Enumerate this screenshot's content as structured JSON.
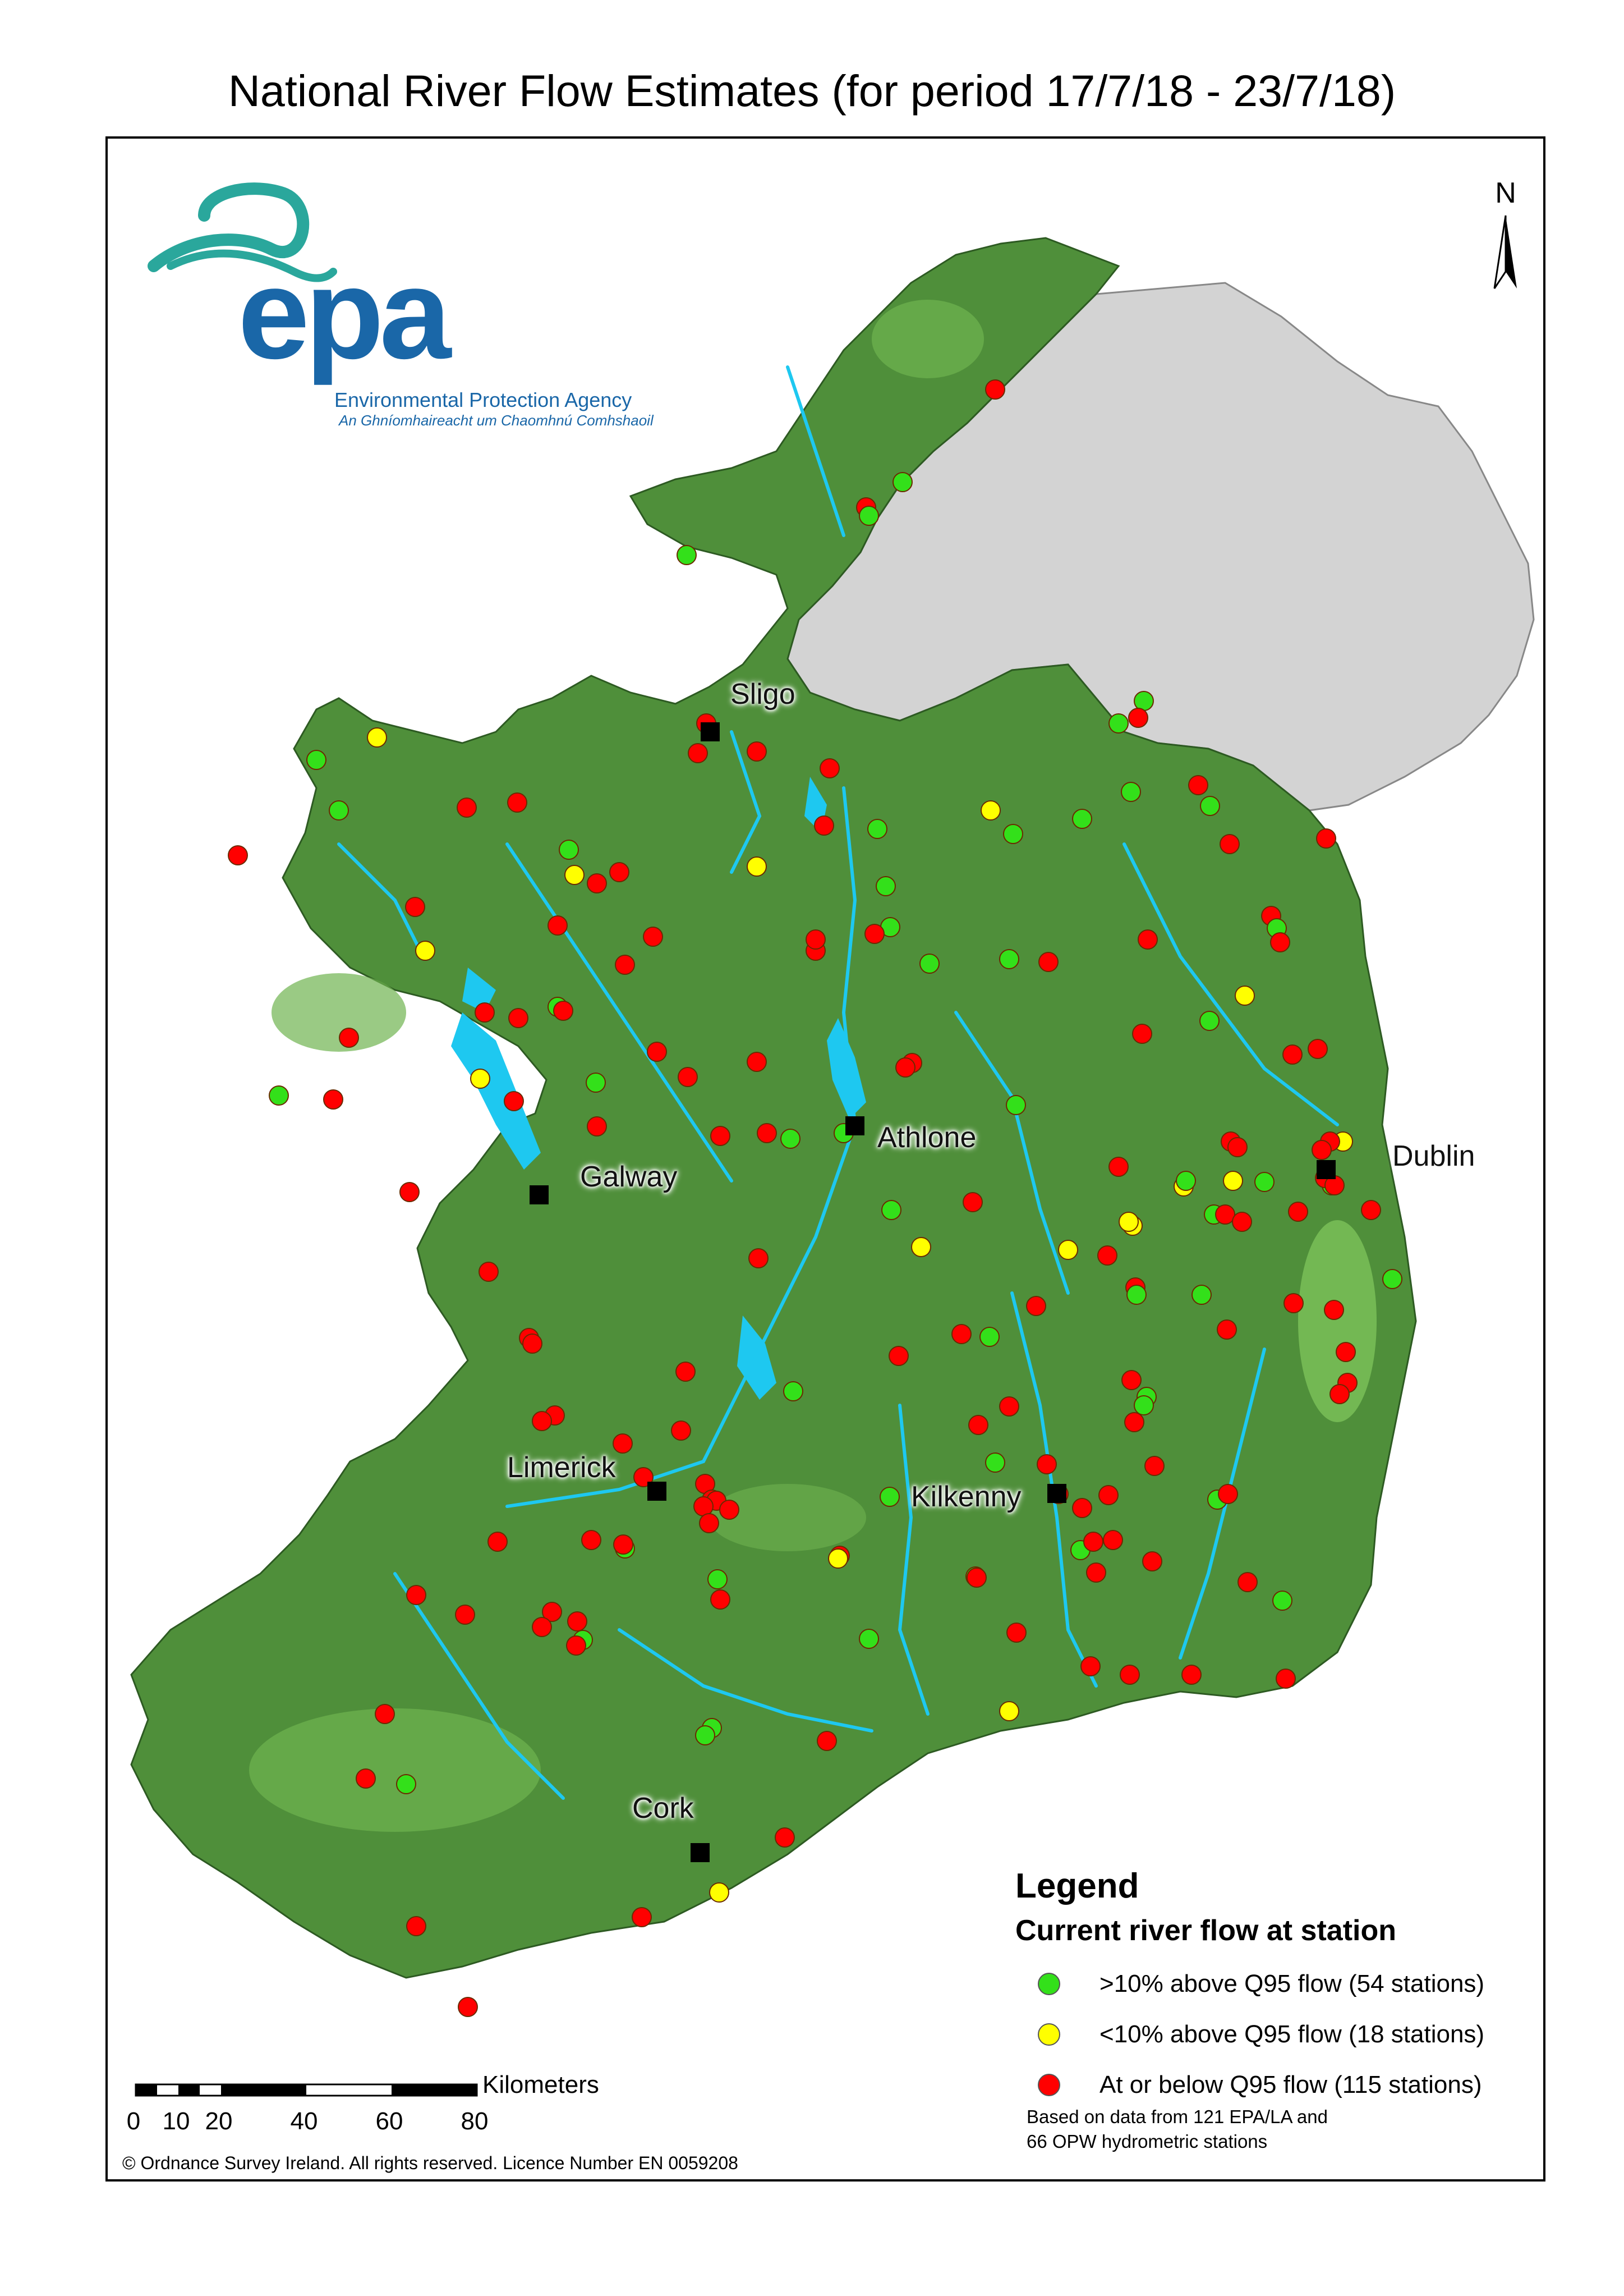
{
  "title": "National River Flow Estimates (for period 17/7/18 - 23/7/18)",
  "logo": {
    "name": "epa",
    "line1": "Environmental Protection Agency",
    "line2": "An Ghníomhaireacht um Chaomhnú Comhshaoil"
  },
  "north_label": "N",
  "cities": [
    {
      "name": "Sligo"
    },
    {
      "name": "Athlone"
    },
    {
      "name": "Galway"
    },
    {
      "name": "Dublin"
    },
    {
      "name": "Limerick"
    },
    {
      "name": "Kilkenny"
    },
    {
      "name": "Cork"
    }
  ],
  "legend": {
    "title": "Legend",
    "subtitle": "Current river flow at station",
    "items": [
      {
        "label": ">10% above Q95 flow (54 stations)",
        "color": "#33e01a"
      },
      {
        "label": "<10% above Q95 flow (18 stations)",
        "color": "#ffff00"
      },
      {
        "label": "At or below Q95 flow (115 stations)",
        "color": "#ff0000"
      }
    ]
  },
  "note": {
    "line1": "Based on data from 121 EPA/LA and",
    "line2": "66 OPW hydrometric stations"
  },
  "scale": {
    "unit_label": "Kilometers",
    "ticks": [
      "0",
      "10",
      "20",
      "40",
      "60",
      "80"
    ]
  },
  "copyright": "© Ordnance Survey Ireland. All rights reserved. Licence Number EN 0059208",
  "colors": {
    "land": "#4f8f3a",
    "land_light": "#7cc25a",
    "rivers": "#1ec8f0",
    "northern_ireland": "#d3d3d3",
    "logo_blue": "#1a67a8",
    "logo_teal": "#2aa79c"
  }
}
